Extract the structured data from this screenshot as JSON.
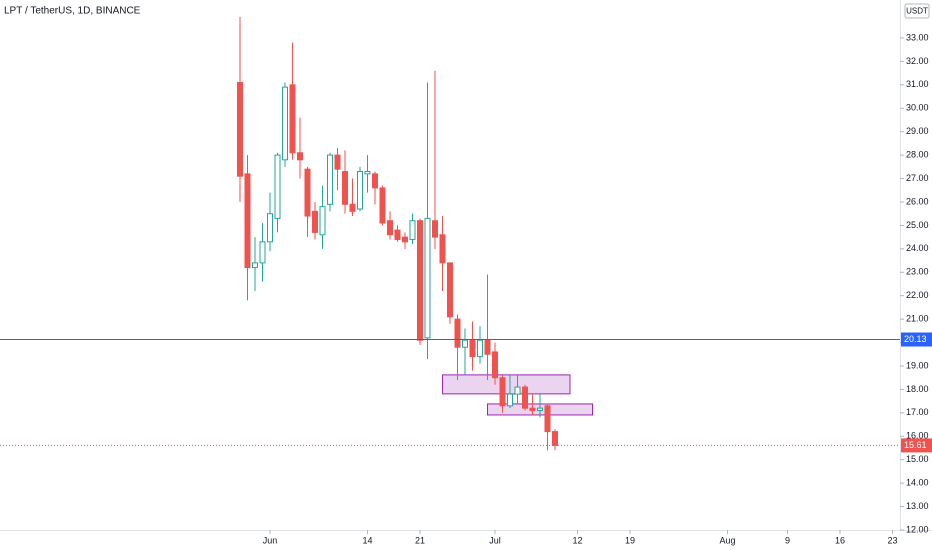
{
  "chart_data": {
    "type": "candlestick",
    "title": "LPT / TetherUS, 1D, BINANCE",
    "y_unit": "USDT",
    "up_color": "#26a69a",
    "down_color": "#ef5350",
    "x": [
      "May 28",
      "May 29",
      "May 30",
      "May 31",
      "Jun 1",
      "Jun 2",
      "Jun 3",
      "Jun 4",
      "Jun 5",
      "Jun 6",
      "Jun 7",
      "Jun 8",
      "Jun 9",
      "Jun 10",
      "Jun 11",
      "Jun 12",
      "Jun 13",
      "Jun 14",
      "Jun 15",
      "Jun 16",
      "Jun 17",
      "Jun 18",
      "Jun 19",
      "Jun 20",
      "Jun 21",
      "Jun 22",
      "Jun 23",
      "Jun 24",
      "Jun 25",
      "Jun 26",
      "Jun 27",
      "Jun 28",
      "Jun 29",
      "Jun 30",
      "Jul 1",
      "Jul 2",
      "Jul 3",
      "Jul 4",
      "Jul 5",
      "Jul 6",
      "Jul 7",
      "Jul 8",
      "Jul 9"
    ],
    "open": [
      31.1,
      27.2,
      23.2,
      23.4,
      24.3,
      25.3,
      27.8,
      31.0,
      28.1,
      27.4,
      25.6,
      24.6,
      25.9,
      28.0,
      27.3,
      25.9,
      25.7,
      27.2,
      27.2,
      26.6,
      25.2,
      24.8,
      24.5,
      24.4,
      25.2,
      20.2,
      25.2,
      24.6,
      23.4,
      21.0,
      19.8,
      20.1,
      19.4,
      20.1,
      19.6,
      18.5,
      17.3,
      17.8,
      18.1,
      17.2,
      17.1,
      17.3,
      16.2
    ],
    "high": [
      33.9,
      28.0,
      24.5,
      25.1,
      26.4,
      28.1,
      31.1,
      32.8,
      29.6,
      27.5,
      26.0,
      26.7,
      28.1,
      28.3,
      28.2,
      27.0,
      27.5,
      28.0,
      27.3,
      26.7,
      25.6,
      25.0,
      24.7,
      25.5,
      25.3,
      31.1,
      31.6,
      25.4,
      23.4,
      21.2,
      20.6,
      20.9,
      20.7,
      22.9,
      20.0,
      18.6,
      18.6,
      18.6,
      18.2,
      17.8,
      17.8,
      17.4,
      16.3
    ],
    "low": [
      26.0,
      21.8,
      22.2,
      22.6,
      23.9,
      24.7,
      27.5,
      27.8,
      27.0,
      24.5,
      24.4,
      24.0,
      25.6,
      26.5,
      25.5,
      25.4,
      25.6,
      26.4,
      25.9,
      25.0,
      24.4,
      24.3,
      24.0,
      24.2,
      19.9,
      19.3,
      24.0,
      22.2,
      20.8,
      18.4,
      18.6,
      18.8,
      19.1,
      18.4,
      18.2,
      17.0,
      17.2,
      17.4,
      17.1,
      16.9,
      16.8,
      15.4,
      15.4
    ],
    "close": [
      27.1,
      23.2,
      23.4,
      24.3,
      25.5,
      28.0,
      30.9,
      28.1,
      27.8,
      25.4,
      24.7,
      25.8,
      28.0,
      27.4,
      25.9,
      25.6,
      27.3,
      27.3,
      26.6,
      25.1,
      24.6,
      24.4,
      24.3,
      25.2,
      20.1,
      25.3,
      24.5,
      23.4,
      21.1,
      19.8,
      20.1,
      19.4,
      20.1,
      19.5,
      18.5,
      17.3,
      17.8,
      18.1,
      17.2,
      17.1,
      17.2,
      16.2,
      15.61
    ],
    "xlim": [
      "Apr 26",
      "Aug 24"
    ],
    "xticks": [
      {
        "value": "Jun 1",
        "label": "Jun"
      },
      {
        "value": "Jun 14",
        "label": "14"
      },
      {
        "value": "Jun 21",
        "label": "21"
      },
      {
        "value": "Jul 1",
        "label": "Jul"
      },
      {
        "value": "Jul 12",
        "label": "12"
      },
      {
        "value": "Jul 19",
        "label": "19"
      },
      {
        "value": "Aug 1",
        "label": "Aug"
      },
      {
        "value": "Aug 9",
        "label": "9"
      },
      {
        "value": "Aug 16",
        "label": "16"
      },
      {
        "value": "Aug 23",
        "label": "23"
      }
    ],
    "ylim": [
      12,
      34.62
    ],
    "yticks": [
      {
        "value": 12,
        "label": "12.00"
      },
      {
        "value": 13,
        "label": "13.00"
      },
      {
        "value": 14,
        "label": "14.00"
      },
      {
        "value": 15,
        "label": "15.00"
      },
      {
        "value": 16,
        "label": "16.00"
      },
      {
        "value": 17,
        "label": "17.00"
      },
      {
        "value": 18,
        "label": "18.00"
      },
      {
        "value": 19,
        "label": "19.00"
      },
      {
        "value": 20,
        "label": "20.00"
      },
      {
        "value": 21,
        "label": "21.00"
      },
      {
        "value": 22,
        "label": "22.00"
      },
      {
        "value": 23,
        "label": "23.00"
      },
      {
        "value": 24,
        "label": "24.00"
      },
      {
        "value": 25,
        "label": "25.00"
      },
      {
        "value": 26,
        "label": "26.00"
      },
      {
        "value": 27,
        "label": "27.00"
      },
      {
        "value": 28,
        "label": "28.00"
      },
      {
        "value": 29,
        "label": "29.00"
      },
      {
        "value": 30,
        "label": "30.00"
      },
      {
        "value": 31,
        "label": "31.00"
      },
      {
        "value": 32,
        "label": "32.00"
      },
      {
        "value": 33,
        "label": "33.00"
      }
    ],
    "grid": false,
    "price_lines": [
      {
        "value": 20.13,
        "color": "#2962ff",
        "style": "solid"
      },
      {
        "value": 15.61,
        "color": "#ef5350",
        "style": "dotted"
      }
    ],
    "zones": [
      {
        "x0": "Jun 24",
        "x1": "Jul 11",
        "y0": 17.81,
        "y1": 18.62,
        "color": "#9c27b0"
      },
      {
        "x0": "Jun 30",
        "x1": "Jul 14",
        "y0": 16.91,
        "y1": 17.38,
        "color": "#9c27b0"
      }
    ]
  }
}
